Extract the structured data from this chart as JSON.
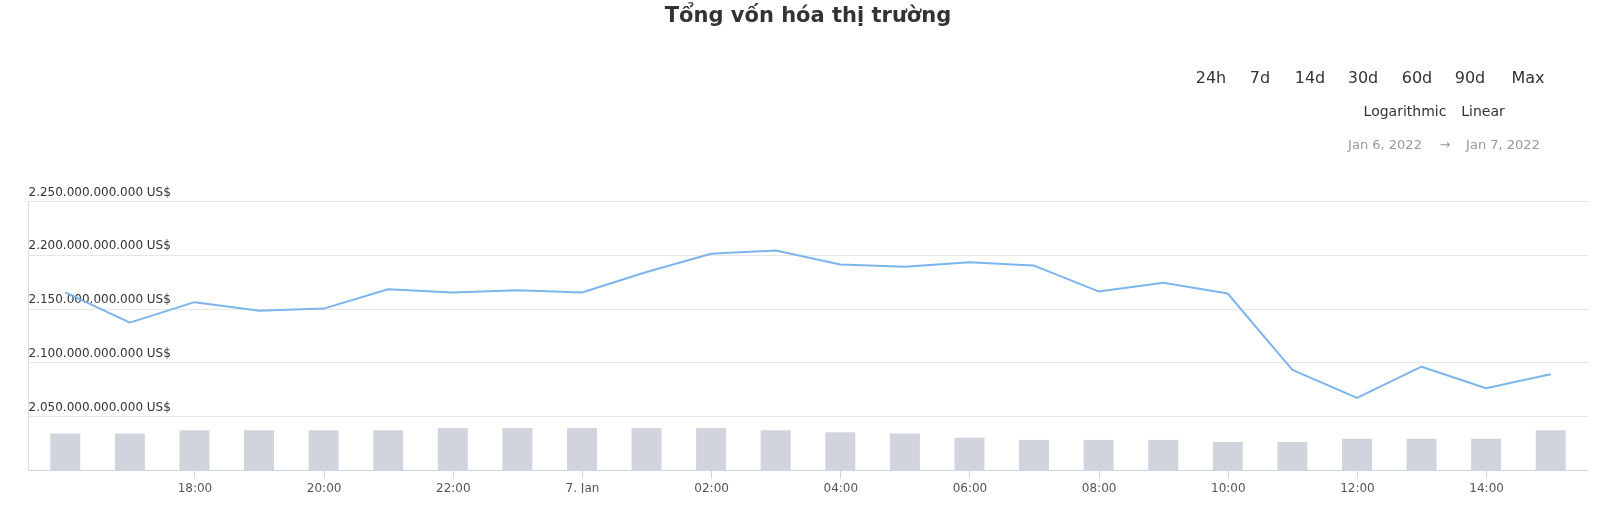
{
  "chart_data": {
    "type": "line",
    "title": "Tổng vốn hóa thị trường",
    "x": [
      "2022-01-06T16:00",
      "2022-01-06T17:00",
      "2022-01-06T18:00",
      "2022-01-06T19:00",
      "2022-01-06T20:00",
      "2022-01-06T21:00",
      "2022-01-06T22:00",
      "2022-01-06T23:00",
      "2022-01-07T00:00",
      "2022-01-07T01:00",
      "2022-01-07T02:00",
      "2022-01-07T03:00",
      "2022-01-07T04:00",
      "2022-01-07T05:00",
      "2022-01-07T06:00",
      "2022-01-07T07:00",
      "2022-01-07T08:00",
      "2022-01-07T09:00",
      "2022-01-07T10:00",
      "2022-01-07T11:00",
      "2022-01-07T12:00",
      "2022-01-07T13:00",
      "2022-01-07T14:00",
      "2022-01-07T15:00"
    ],
    "series": [
      {
        "type": "bar",
        "color": "#d1d4dc",
        "values": [
          2034000000000,
          2034000000000,
          2037000000000,
          2037000000000,
          2037000000000,
          2037000000000,
          2039000000000,
          2039000000000,
          2039000000000,
          2039000000000,
          2039000000000,
          2037000000000,
          2035000000000,
          2034000000000,
          2030000000000,
          2028000000000,
          2028000000000,
          2028000000000,
          2026000000000,
          2026000000000,
          2029000000000,
          2029000000000,
          2029000000000,
          2037000000000
        ]
      },
      {
        "color": "#7cb5ec",
        "values": [
          2165000000000,
          2137000000000,
          2156000000000,
          2148000000000,
          2150000000000,
          2168000000000,
          2165000000000,
          2167000000000,
          2165000000000,
          2184000000000,
          2201000000000,
          2204000000000,
          2191000000000,
          2189000000000,
          2193000000000,
          2190000000000,
          2166000000000,
          2174000000000,
          2164000000000,
          2093000000000,
          2067000000000,
          2096000000000,
          2076000000000,
          2089000000000
        ]
      }
    ],
    "xlim": [
      "2022-01-06T15:30",
      "2022-01-07T15:30"
    ],
    "xticks": [
      {
        "value": "2022-01-06T18:00",
        "label": "18:00"
      },
      {
        "value": "2022-01-06T20:00",
        "label": "20:00"
      },
      {
        "value": "2022-01-06T22:00",
        "label": "22:00"
      },
      {
        "value": "2022-01-07T00:00",
        "label": "7. Jan"
      },
      {
        "value": "2022-01-07T02:00",
        "label": "02:00"
      },
      {
        "value": "2022-01-07T04:00",
        "label": "04:00"
      },
      {
        "value": "2022-01-07T06:00",
        "label": "06:00"
      },
      {
        "value": "2022-01-07T08:00",
        "label": "08:00"
      },
      {
        "value": "2022-01-07T10:00",
        "label": "10:00"
      },
      {
        "value": "2022-01-07T12:00",
        "label": "12:00"
      },
      {
        "value": "2022-01-07T14:00",
        "label": "14:00"
      }
    ],
    "ylim": [
      2000000000000,
      2250000000000
    ],
    "yticks": [
      {
        "value": 2050000000000,
        "label": "2.050.000.000.000 US$"
      },
      {
        "value": 2100000000000,
        "label": "2.100.000.000.000 US$"
      },
      {
        "value": 2150000000000,
        "label": "2.150.000.000.000 US$"
      },
      {
        "value": 2200000000000,
        "label": "2.200.000.000.000 US$"
      },
      {
        "value": 2250000000000,
        "label": "2.250.000.000.000 US$"
      }
    ],
    "grid": "y",
    "marker": "none",
    "line_style": "solid",
    "annotations": [
      "24h",
      "7d",
      "14d",
      "30d",
      "60d",
      "90d",
      "Max",
      "Logarithmic",
      "Linear",
      "Jan 6, 2022",
      "→",
      "Jan 7, 2022"
    ]
  }
}
